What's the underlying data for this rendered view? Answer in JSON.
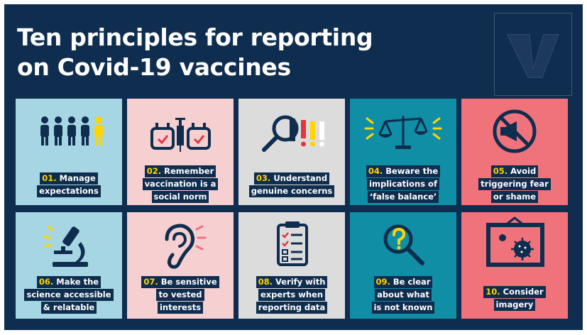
{
  "title": {
    "line1": "Ten principles for reporting",
    "line2": "on Covid-19 vaccines"
  },
  "logo": {
    "icon": "publisher-logo-icon"
  },
  "colors": {
    "navy": "#0f2d4e",
    "light_blue": "#a6d6e3",
    "pink": "#f6cfd1",
    "grey": "#dcdcdc",
    "teal": "#0f8ea6",
    "coral": "#f0727a",
    "yellow": "#ffd400"
  },
  "principles": [
    {
      "num": "01.",
      "lines": [
        "Manage",
        "expectations"
      ],
      "icon": "people-queue-icon"
    },
    {
      "num": "02.",
      "lines": [
        "Remember",
        "vaccination is a",
        "social norm"
      ],
      "icon": "vaccine-calendar-icon"
    },
    {
      "num": "03.",
      "lines": [
        "Understand",
        "genuine concerns"
      ],
      "icon": "magnifier-exclamation-icon"
    },
    {
      "num": "04.",
      "lines": [
        "Beware the",
        "implications of",
        "‘false balance’"
      ],
      "icon": "balance-scale-icon"
    },
    {
      "num": "05.",
      "lines": [
        "Avoid",
        "triggering fear",
        "or shame"
      ],
      "icon": "no-megaphone-icon"
    },
    {
      "num": "06.",
      "lines": [
        "Make the",
        "science accessible",
        "& relatable"
      ],
      "icon": "microscope-icon"
    },
    {
      "num": "07.",
      "lines": [
        "Be sensitive",
        "to vested",
        "interests"
      ],
      "icon": "ear-icon"
    },
    {
      "num": "08.",
      "lines": [
        "Verify with",
        "experts when",
        "reporting data"
      ],
      "icon": "clipboard-checklist-icon"
    },
    {
      "num": "09.",
      "lines": [
        "Be clear",
        "about what",
        "is not known"
      ],
      "icon": "magnifier-question-icon"
    },
    {
      "num": "10.",
      "lines": [
        "Consider",
        "imagery"
      ],
      "icon": "virus-picture-icon"
    }
  ]
}
